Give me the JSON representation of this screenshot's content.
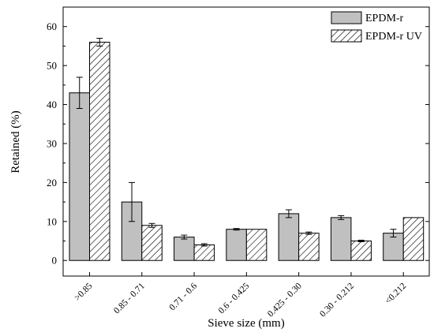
{
  "chart_data": {
    "type": "bar",
    "title": "",
    "xlabel": "Sieve size (mm)",
    "ylabel": "Retained (%)",
    "ylim": [
      -4,
      65
    ],
    "yticks": [
      0,
      10,
      20,
      30,
      40,
      50,
      60
    ],
    "grid": false,
    "legend_position": "top-right",
    "categories": [
      ">0.85",
      "0.85 - 0.71",
      "0.71 - 0.6",
      "0.6 - 0.425",
      "0.425 - 0.30",
      "0.30 - 0.212",
      "<0.212"
    ],
    "series": [
      {
        "name": "EPDM-r",
        "pattern": "solid",
        "color": "#c0c0c0",
        "values": [
          43,
          15,
          6,
          8,
          12,
          11,
          7
        ],
        "errors": [
          4,
          5,
          0.5,
          0.2,
          1,
          0.5,
          1
        ]
      },
      {
        "name": "EPDM-r UV",
        "pattern": "hatched",
        "color": "#ffffff",
        "values": [
          56,
          9,
          4,
          8,
          7,
          5,
          11
        ],
        "errors": [
          1,
          0.5,
          0.3,
          0,
          0.3,
          0.2,
          0
        ]
      }
    ]
  }
}
